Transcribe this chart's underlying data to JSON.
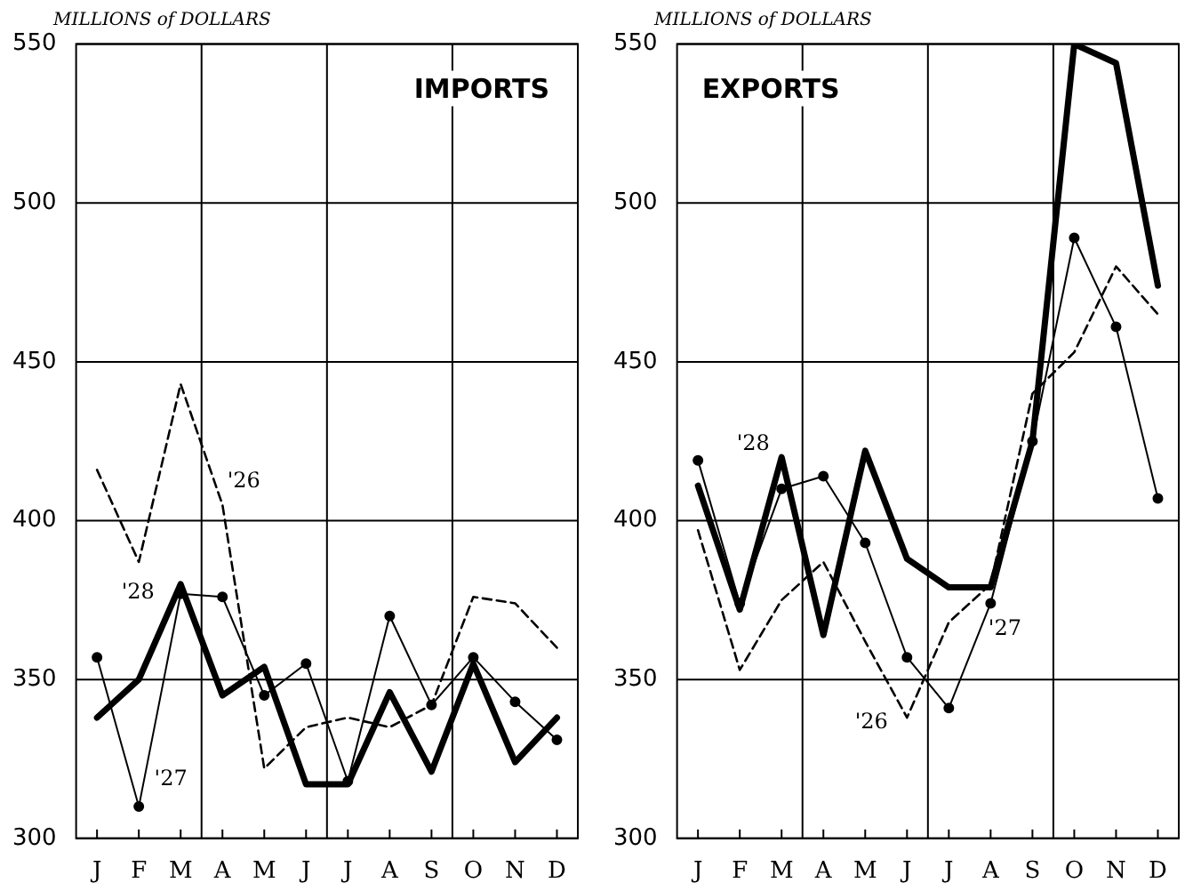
{
  "chart_data": [
    {
      "type": "line",
      "title": "IMPORTS",
      "ylabel": "MILLIONS of DOLLARS",
      "categories": [
        "J",
        "F",
        "M",
        "A",
        "M",
        "J",
        "J",
        "A",
        "S",
        "O",
        "N",
        "D"
      ],
      "ylim": [
        300,
        550
      ],
      "yticks": [
        300,
        350,
        400,
        450,
        500,
        550
      ],
      "grid": true,
      "legend": false,
      "series": [
        {
          "name": "'26",
          "color": "#000000",
          "line_style": "dashed",
          "marker": "none",
          "values": [
            416,
            387,
            443,
            405,
            322,
            335,
            338,
            335,
            342,
            376,
            374,
            360
          ]
        },
        {
          "name": "'27",
          "color": "#000000",
          "line_style": "solid",
          "marker": "circle",
          "values": [
            357,
            310,
            377,
            376,
            345,
            355,
            318,
            370,
            342,
            357,
            343,
            331
          ]
        },
        {
          "name": "'28",
          "color": "#000000",
          "line_style": "solid",
          "marker": "none",
          "values": [
            338,
            350,
            380,
            345,
            354,
            317,
            317,
            346,
            321,
            355,
            324,
            338
          ]
        }
      ]
    },
    {
      "type": "line",
      "title": "EXPORTS",
      "ylabel": "MILLIONS of DOLLARS",
      "categories": [
        "J",
        "F",
        "M",
        "A",
        "M",
        "J",
        "J",
        "A",
        "S",
        "O",
        "N",
        "D"
      ],
      "ylim": [
        300,
        550
      ],
      "yticks": [
        300,
        350,
        400,
        450,
        500,
        550
      ],
      "grid": true,
      "legend": false,
      "series": [
        {
          "name": "'26",
          "color": "#000000",
          "line_style": "dashed",
          "marker": "none",
          "values": [
            397,
            353,
            375,
            387,
            362,
            338,
            368,
            380,
            440,
            453,
            480,
            465
          ]
        },
        {
          "name": "'27",
          "color": "#000000",
          "line_style": "solid",
          "marker": "circle",
          "values": [
            419,
            374,
            410,
            414,
            393,
            357,
            341,
            374,
            425,
            489,
            461,
            407
          ]
        },
        {
          "name": "'28",
          "color": "#000000",
          "line_style": "solid",
          "marker": "none",
          "values": [
            411,
            372,
            420,
            364,
            422,
            388,
            379,
            379,
            425,
            550,
            544,
            474
          ]
        }
      ]
    }
  ]
}
